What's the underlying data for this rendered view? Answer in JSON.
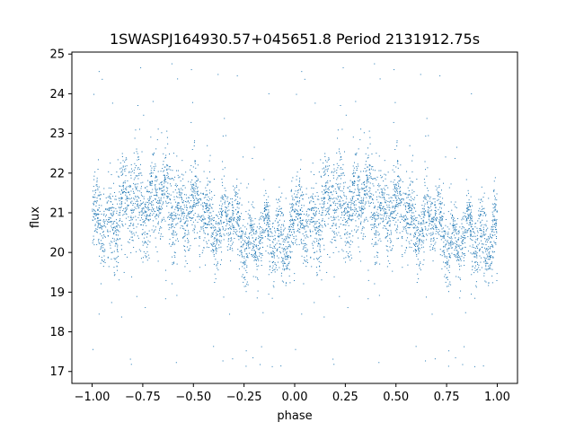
{
  "chart_data": {
    "type": "scatter",
    "title": "1SWASPJ164930.57+045651.8 Period 2131912.75s",
    "xlabel": "phase",
    "ylabel": "flux",
    "xlim": [
      -1.1,
      1.1
    ],
    "ylim": [
      16.7,
      25.05
    ],
    "x_ticks": [
      -1.0,
      -0.75,
      -0.5,
      -0.25,
      0.0,
      0.25,
      0.5,
      0.75,
      1.0
    ],
    "x_tick_labels": [
      "−1.00",
      "−0.75",
      "−0.50",
      "−0.25",
      "0.00",
      "0.25",
      "0.50",
      "0.75",
      "1.00"
    ],
    "y_ticks": [
      17,
      18,
      19,
      20,
      21,
      22,
      23,
      24,
      25
    ],
    "y_tick_labels": [
      "17",
      "18",
      "19",
      "20",
      "21",
      "22",
      "23",
      "24",
      "25"
    ],
    "grid": false,
    "legend": "none",
    "marker_color": "#1f77b4",
    "description_of_series": "dense scatter of flux vs phase; the pattern repeats with period 1 in phase (mirrored copy of phase 0..1 onto -1..0)",
    "series": [
      {
        "values_profile": [
          {
            "phase": -1.0,
            "flux_center": 20.5,
            "spread": 1.2
          },
          {
            "phase": -0.9,
            "flux_center": 20.9,
            "spread": 1.4
          },
          {
            "phase": -0.8,
            "flux_center": 21.2,
            "spread": 1.6
          },
          {
            "phase": -0.7,
            "flux_center": 21.3,
            "spread": 1.4
          },
          {
            "phase": -0.6,
            "flux_center": 21.2,
            "spread": 1.4
          },
          {
            "phase": -0.5,
            "flux_center": 21.0,
            "spread": 1.3
          },
          {
            "phase": -0.4,
            "flux_center": 20.8,
            "spread": 1.1
          },
          {
            "phase": -0.3,
            "flux_center": 20.7,
            "spread": 1.1
          },
          {
            "phase": -0.2,
            "flux_center": 20.3,
            "spread": 1.0
          },
          {
            "phase": -0.1,
            "flux_center": 20.4,
            "spread": 1.1
          },
          {
            "phase": 0.0,
            "flux_center": 20.5,
            "spread": 1.2
          },
          {
            "phase": 0.1,
            "flux_center": 20.9,
            "spread": 1.4
          },
          {
            "phase": 0.2,
            "flux_center": 21.2,
            "spread": 1.6
          },
          {
            "phase": 0.3,
            "flux_center": 21.3,
            "spread": 1.4
          },
          {
            "phase": 0.4,
            "flux_center": 21.2,
            "spread": 1.4
          },
          {
            "phase": 0.5,
            "flux_center": 21.0,
            "spread": 1.3
          },
          {
            "phase": 0.6,
            "flux_center": 20.8,
            "spread": 1.1
          },
          {
            "phase": 0.7,
            "flux_center": 20.7,
            "spread": 1.1
          },
          {
            "phase": 0.8,
            "flux_center": 20.3,
            "spread": 1.0
          },
          {
            "phase": 0.9,
            "flux_center": 20.4,
            "spread": 1.1
          },
          {
            "phase": 1.0,
            "flux_center": 20.5,
            "spread": 1.2
          }
        ]
      }
    ]
  }
}
